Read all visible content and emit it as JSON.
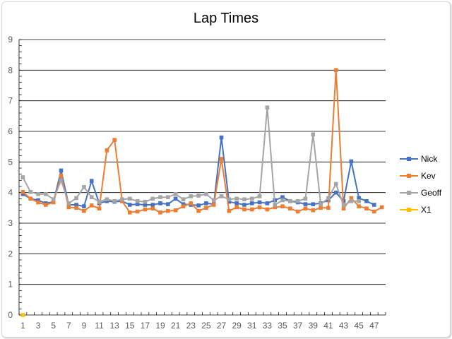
{
  "chart_data": {
    "type": "line",
    "title": "Lap Times",
    "xlabel": "",
    "ylabel": "",
    "ylim": [
      0,
      9
    ],
    "yticks": [
      0,
      1,
      2,
      3,
      4,
      5,
      6,
      7,
      8,
      9
    ],
    "x": [
      1,
      2,
      3,
      4,
      5,
      6,
      7,
      8,
      9,
      10,
      11,
      12,
      13,
      14,
      15,
      16,
      17,
      18,
      19,
      20,
      21,
      22,
      23,
      24,
      25,
      26,
      27,
      28,
      29,
      30,
      31,
      32,
      33,
      34,
      35,
      36,
      37,
      38,
      39,
      40,
      41,
      42,
      43,
      44,
      45,
      46,
      47,
      48
    ],
    "xtick_labels": [
      1,
      3,
      5,
      7,
      9,
      11,
      13,
      15,
      17,
      19,
      21,
      23,
      25,
      27,
      29,
      31,
      33,
      35,
      37,
      39,
      41,
      43,
      45,
      47
    ],
    "grid": "horizontal",
    "legend_position": "right",
    "series": [
      {
        "name": "Nick",
        "color": "#4472C4",
        "values": [
          3.95,
          3.8,
          3.75,
          3.65,
          3.7,
          4.72,
          3.6,
          3.6,
          3.55,
          4.38,
          3.65,
          3.72,
          3.7,
          3.72,
          3.6,
          3.62,
          3.6,
          3.6,
          3.65,
          3.62,
          3.8,
          3.62,
          3.6,
          3.58,
          3.65,
          3.62,
          5.8,
          3.7,
          3.65,
          3.6,
          3.65,
          3.68,
          3.65,
          3.75,
          3.85,
          3.72,
          3.68,
          3.62,
          3.62,
          3.65,
          3.75,
          4.0,
          3.72,
          5.02,
          3.82,
          3.72,
          3.6,
          null
        ]
      },
      {
        "name": "Kev",
        "color": "#ED7D31",
        "values": [
          4.02,
          3.8,
          3.68,
          3.6,
          3.68,
          4.55,
          3.52,
          3.5,
          3.4,
          3.58,
          3.48,
          5.38,
          5.72,
          3.72,
          3.35,
          3.38,
          3.45,
          3.48,
          3.35,
          3.4,
          3.42,
          3.55,
          3.65,
          3.4,
          3.5,
          3.6,
          5.1,
          3.4,
          3.52,
          3.45,
          3.45,
          3.52,
          3.45,
          3.52,
          3.55,
          3.48,
          3.38,
          3.48,
          3.42,
          3.5,
          3.5,
          8.0,
          3.48,
          3.82,
          3.55,
          3.48,
          3.38,
          3.52
        ]
      },
      {
        "name": "Geoff",
        "color": "#A5A5A5",
        "values": [
          4.5,
          4.02,
          3.95,
          3.95,
          3.78,
          4.4,
          3.65,
          3.82,
          4.18,
          3.85,
          3.7,
          3.78,
          3.72,
          3.78,
          3.8,
          3.72,
          3.7,
          3.8,
          3.85,
          3.85,
          3.95,
          3.78,
          3.88,
          3.9,
          3.95,
          3.75,
          3.88,
          3.78,
          3.8,
          3.78,
          3.8,
          3.88,
          6.78,
          3.6,
          3.75,
          3.72,
          3.72,
          3.8,
          5.9,
          3.62,
          3.82,
          4.28,
          3.58,
          3.72,
          3.72,
          null,
          null,
          null
        ]
      },
      {
        "name": "X1",
        "color": "#FFC000",
        "values": [
          0,
          null,
          null,
          null,
          null,
          null,
          null,
          null,
          null,
          null,
          null,
          null,
          null,
          null,
          null,
          null,
          null,
          null,
          null,
          null,
          null,
          null,
          null,
          null,
          null,
          null,
          null,
          null,
          null,
          null,
          null,
          null,
          null,
          null,
          null,
          null,
          null,
          null,
          null,
          null,
          null,
          null,
          null,
          null,
          null,
          null,
          null,
          null
        ]
      }
    ]
  }
}
